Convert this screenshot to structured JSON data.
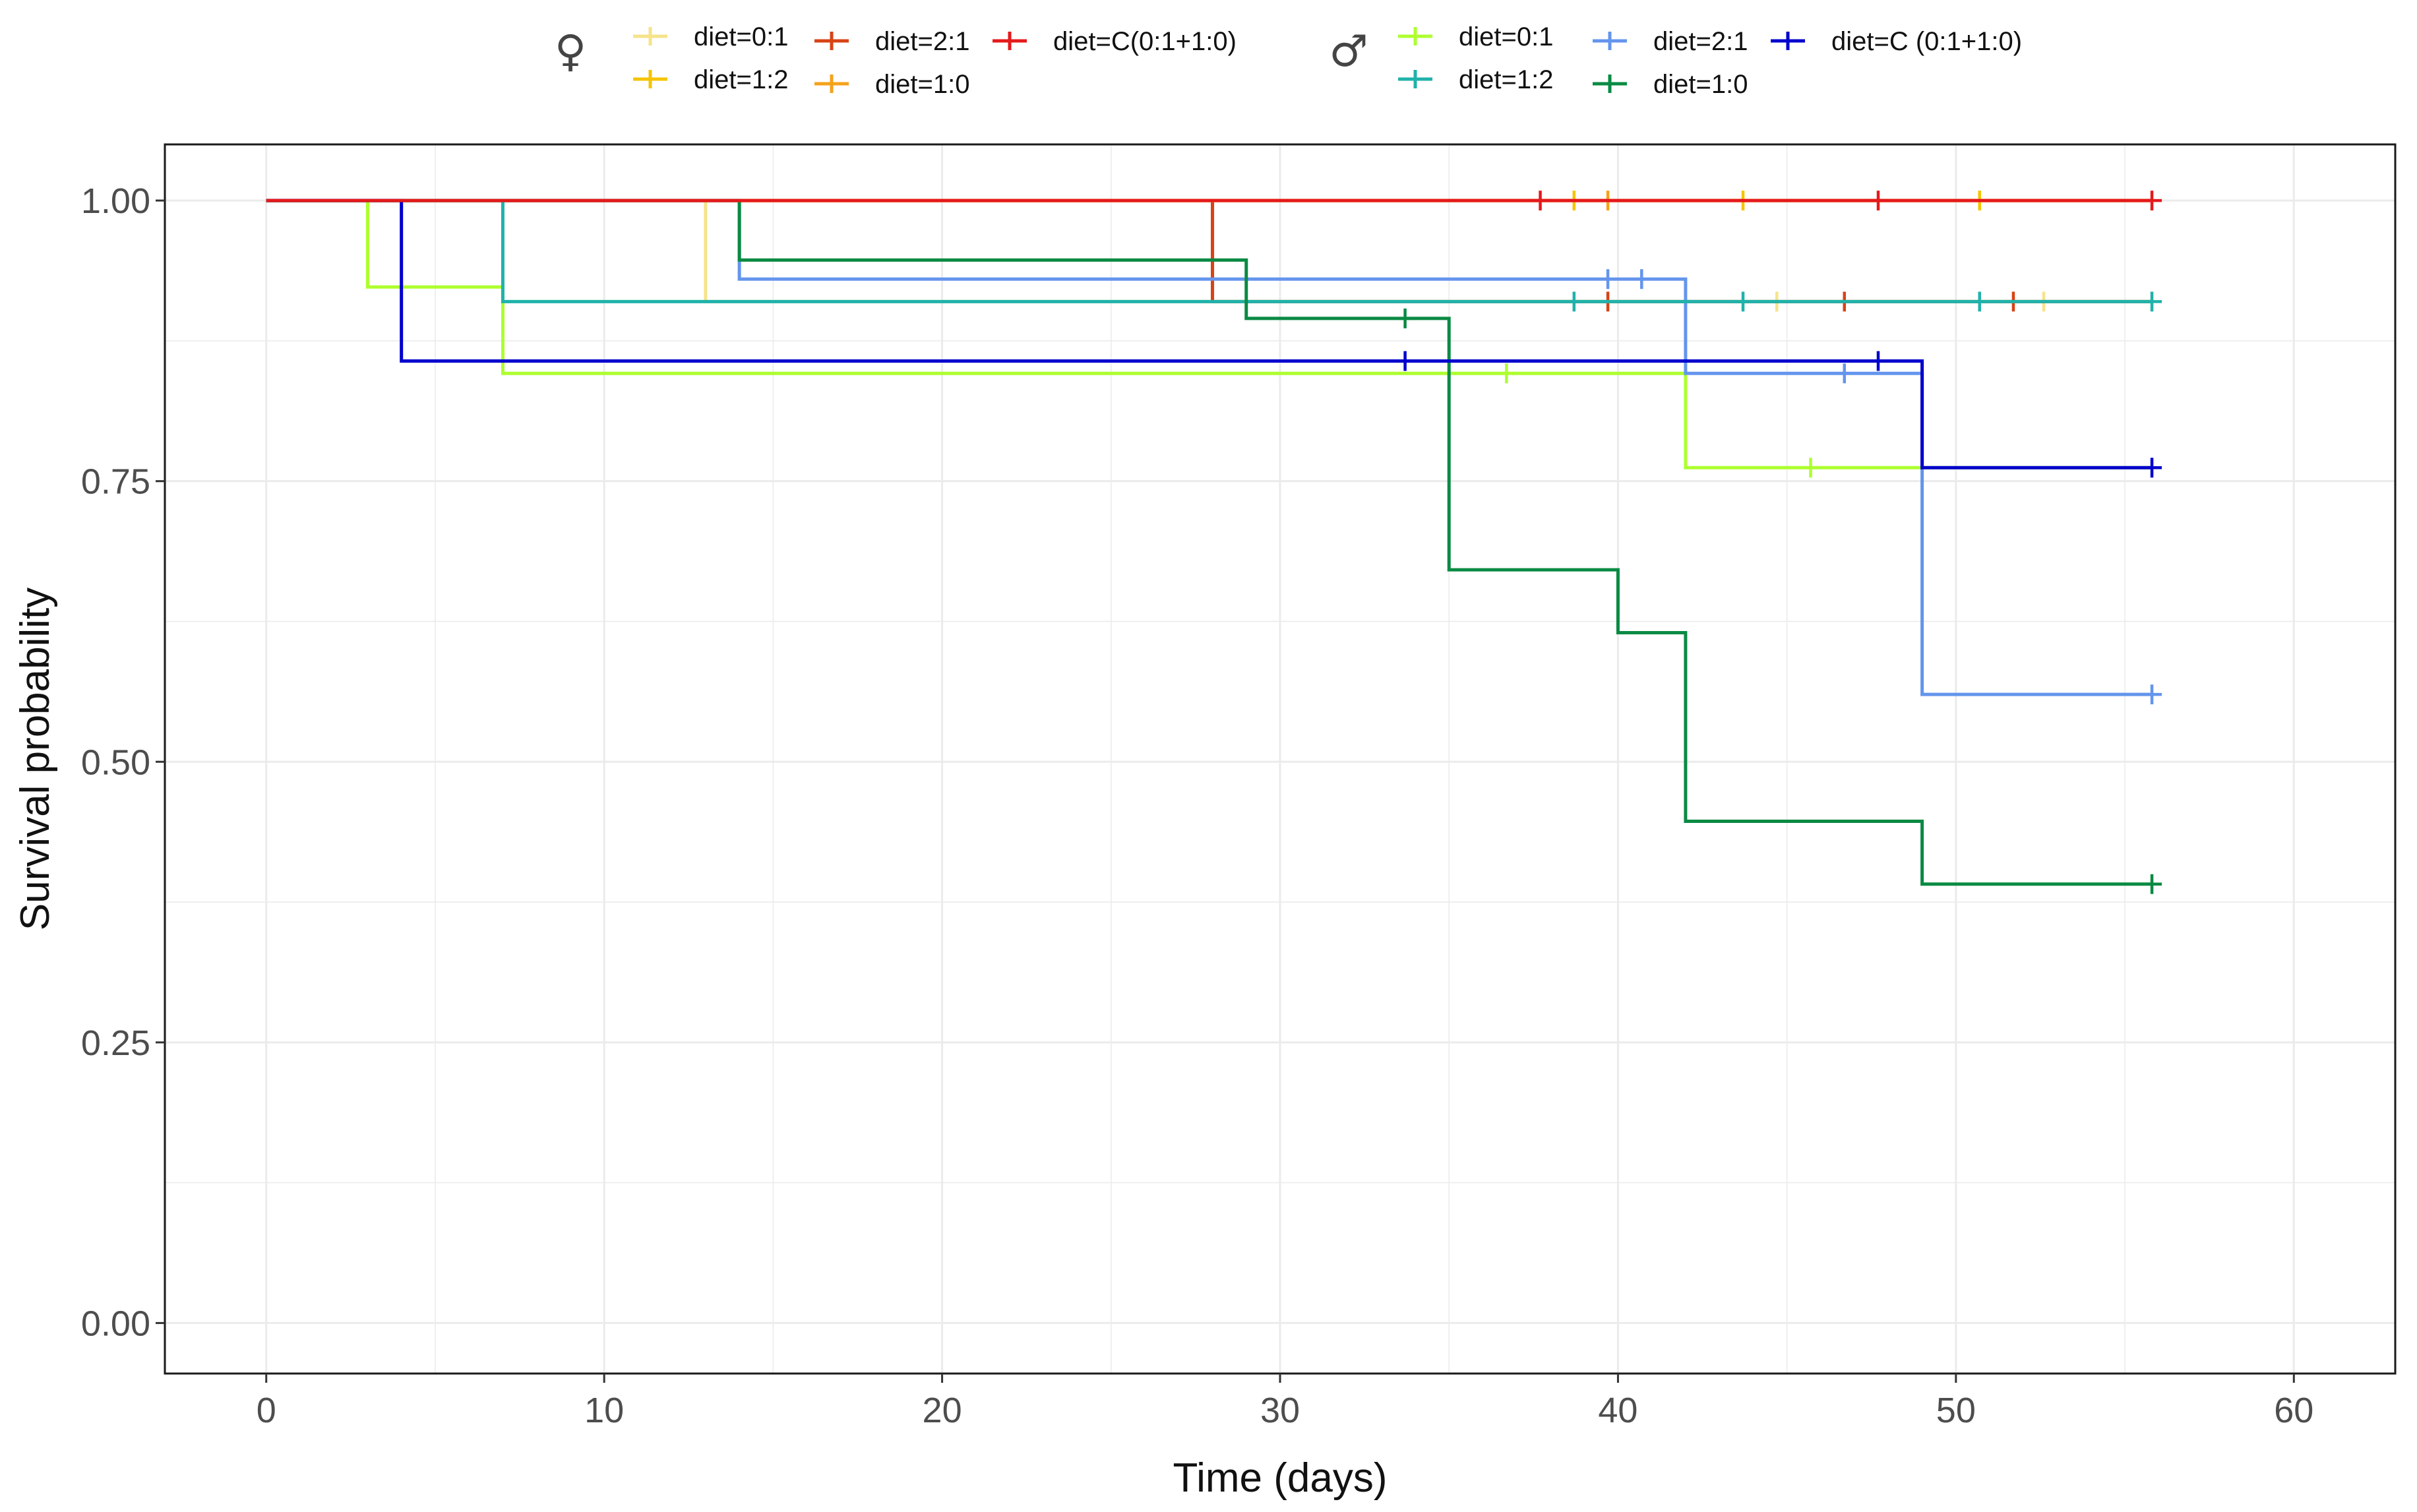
{
  "chart_data": {
    "type": "line",
    "subtype": "kaplan-meier",
    "title": "",
    "xlabel": "Time (days)",
    "ylabel": "Survival probability",
    "xlim": [
      -3,
      63
    ],
    "ylim": [
      -0.045,
      1.05
    ],
    "x_ticks": [
      0,
      10,
      20,
      30,
      40,
      50,
      60
    ],
    "y_ticks": [
      0,
      0.25,
      0.5,
      0.75,
      1.0
    ],
    "y_tick_labels": [
      "0.00",
      "0.25",
      "0.50",
      "0.75",
      "1.00"
    ],
    "grid": true,
    "legend_position": "top",
    "legend_groups": [
      {
        "symbol": "♀",
        "name": "female"
      },
      {
        "symbol": "♂",
        "name": "male"
      }
    ],
    "series": [
      {
        "name": "diet=0:1",
        "group": "female",
        "color": "#F6E38A",
        "steps": [
          [
            0,
            1.0
          ],
          [
            13,
            0.91
          ],
          [
            55.8,
            0.91
          ]
        ],
        "censored": [
          [
            44.7,
            0.91
          ],
          [
            52.6,
            0.91
          ]
        ]
      },
      {
        "name": "diet=2:1",
        "group": "female",
        "color": "#D84315",
        "steps": [
          [
            0,
            1.0
          ],
          [
            28,
            0.91
          ],
          [
            55.8,
            0.91
          ]
        ],
        "censored": [
          [
            39.7,
            0.91
          ],
          [
            46.7,
            0.91
          ],
          [
            51.7,
            0.91
          ]
        ]
      },
      {
        "name": "diet=1:2",
        "group": "female",
        "color": "#F5C400",
        "steps": [
          [
            0,
            1.0
          ],
          [
            55.8,
            1.0
          ]
        ],
        "censored": [
          [
            38.7,
            1.0
          ],
          [
            43.7,
            1.0
          ],
          [
            50.7,
            1.0
          ]
        ]
      },
      {
        "name": "diet=1:0",
        "group": "female",
        "color": "#F5A21B",
        "steps": [
          [
            0,
            1.0
          ],
          [
            55.8,
            1.0
          ]
        ],
        "censored": [
          [
            39.7,
            1.0
          ]
        ]
      },
      {
        "name": "diet=C(0:1+1:0)",
        "group": "female",
        "color": "#E41A1C",
        "steps": [
          [
            0,
            1.0
          ],
          [
            55.8,
            1.0
          ]
        ],
        "censored": [
          [
            37.7,
            1.0
          ],
          [
            47.7,
            1.0
          ],
          [
            55.8,
            1.0
          ]
        ]
      },
      {
        "name": "diet=0:1",
        "group": "male",
        "color": "#ADFF2F",
        "steps": [
          [
            0,
            1.0
          ],
          [
            3,
            0.923
          ],
          [
            7,
            0.846
          ],
          [
            42,
            0.762
          ],
          [
            49,
            0.762
          ],
          [
            55.8,
            0.762
          ]
        ],
        "censored": [
          [
            36.7,
            0.846
          ],
          [
            45.7,
            0.762
          ]
        ]
      },
      {
        "name": "diet=2:1",
        "group": "male",
        "color": "#6495ED",
        "steps": [
          [
            0,
            1.0
          ],
          [
            14,
            0.93
          ],
          [
            42,
            0.846
          ],
          [
            49,
            0.56
          ],
          [
            55.8,
            0.56
          ]
        ],
        "censored": [
          [
            39.7,
            0.93
          ],
          [
            40.7,
            0.93
          ],
          [
            46.7,
            0.846
          ],
          [
            55.8,
            0.56
          ]
        ]
      },
      {
        "name": "diet=1:2",
        "group": "male",
        "color": "#20B2AA",
        "steps": [
          [
            0,
            1.0
          ],
          [
            7,
            0.91
          ],
          [
            55.8,
            0.91
          ]
        ],
        "censored": [
          [
            38.7,
            0.91
          ],
          [
            43.7,
            0.91
          ],
          [
            50.7,
            0.91
          ],
          [
            55.8,
            0.91
          ]
        ]
      },
      {
        "name": "diet=1:0",
        "group": "male",
        "color": "#0A8A43",
        "steps": [
          [
            0,
            1.0
          ],
          [
            14,
            0.947
          ],
          [
            29,
            0.895
          ],
          [
            35,
            0.671
          ],
          [
            40,
            0.615
          ],
          [
            42,
            0.447
          ],
          [
            49,
            0.391
          ],
          [
            55.8,
            0.391
          ]
        ],
        "censored": [
          [
            33.7,
            0.895
          ],
          [
            55.8,
            0.391
          ]
        ]
      },
      {
        "name": "diet=C (0:1+1:0)",
        "group": "male",
        "color": "#0000CD",
        "steps": [
          [
            0,
            1.0
          ],
          [
            4,
            0.857
          ],
          [
            49,
            0.762
          ],
          [
            55.8,
            0.762
          ]
        ],
        "censored": [
          [
            33.7,
            0.857
          ],
          [
            47.7,
            0.857
          ],
          [
            55.8,
            0.762
          ]
        ]
      }
    ]
  }
}
